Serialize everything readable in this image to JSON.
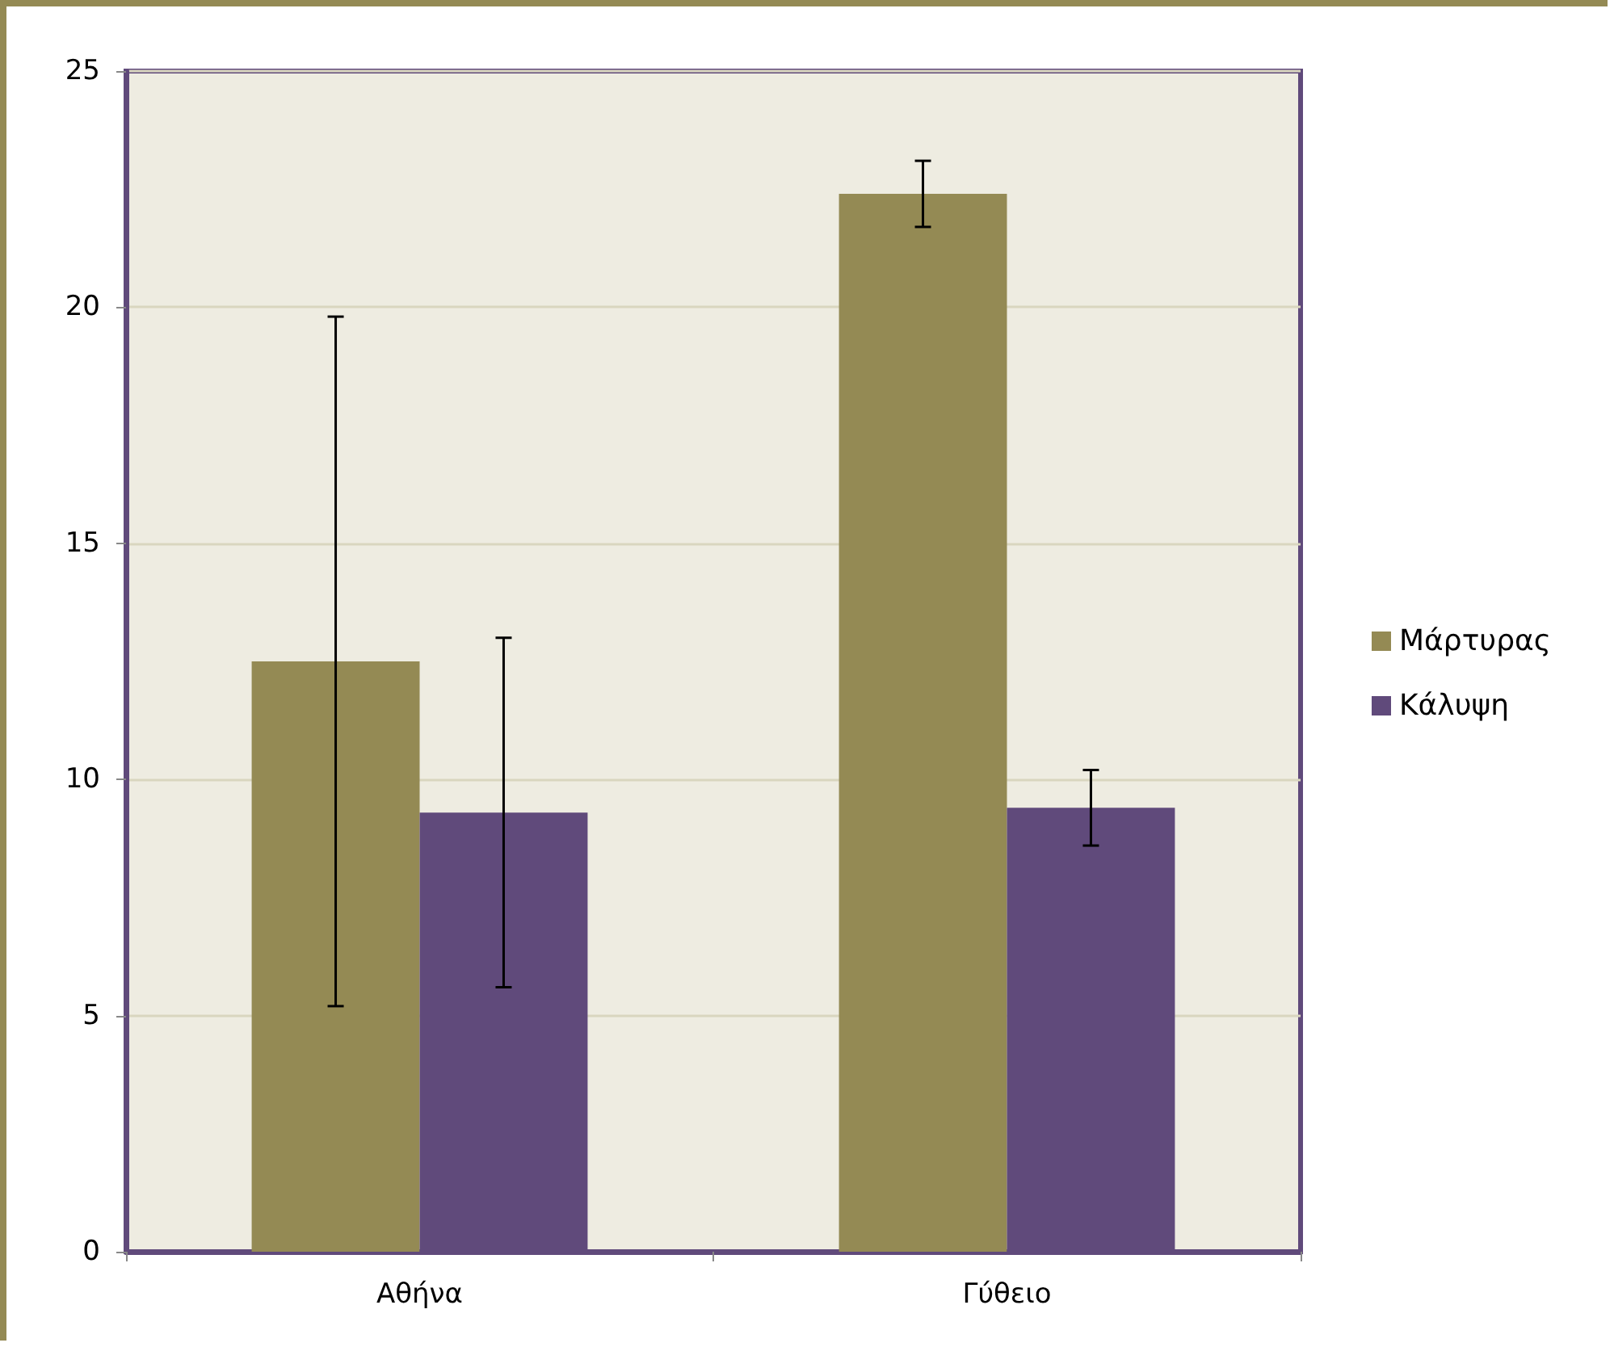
{
  "chart_data": {
    "type": "bar",
    "categories": [
      "Αθήνα",
      "Γύθειο"
    ],
    "series": [
      {
        "name": "Μάρτυρας",
        "color": "#948a54",
        "values": [
          12.5,
          22.4
        ],
        "errors": [
          7.3,
          0.7
        ]
      },
      {
        "name": "Κάλυψη",
        "color": "#604a7b",
        "values": [
          9.3,
          9.4
        ],
        "errors": [
          3.7,
          0.8
        ]
      }
    ],
    "ylim": [
      0,
      25
    ],
    "yticks": [
      0,
      5,
      10,
      15,
      20,
      25
    ],
    "grid": "y",
    "legend": "right"
  }
}
